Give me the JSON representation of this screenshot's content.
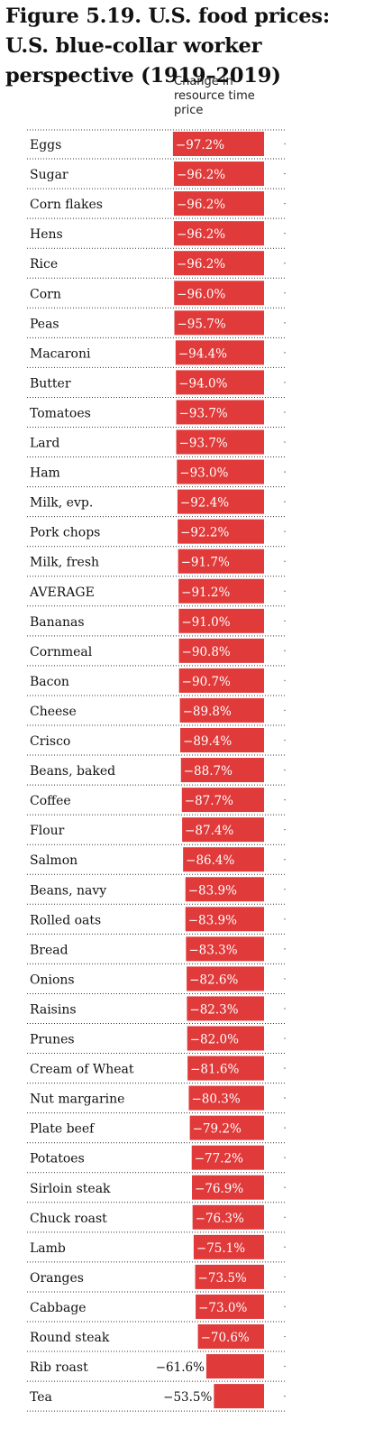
{
  "chart_data": {
    "type": "bar",
    "title": "Figure 5.19. U.S. food prices: U.S. blue-collar worker perspective (1919–2019)",
    "column_header": "Change in resource time price",
    "unit": "%",
    "categories": [
      "Eggs",
      "Sugar",
      "Corn flakes",
      "Hens",
      "Rice",
      "Corn",
      "Peas",
      "Macaroni",
      "Butter",
      "Tomatoes",
      "Lard",
      "Ham",
      "Milk, evp.",
      "Pork chops",
      "Milk, fresh",
      "AVERAGE",
      "Bananas",
      "Cornmeal",
      "Bacon",
      "Cheese",
      "Crisco",
      "Beans, baked",
      "Coffee",
      "Flour",
      "Salmon",
      "Beans, navy",
      "Rolled oats",
      "Bread",
      "Onions",
      "Raisins",
      "Prunes",
      "Cream of Wheat",
      "Nut margarine",
      "Plate beef",
      "Potatoes",
      "Sirloin steak",
      "Chuck roast",
      "Lamb",
      "Oranges",
      "Cabbage",
      "Round steak",
      "Rib roast",
      "Tea"
    ],
    "values": [
      -97.2,
      -96.2,
      -96.2,
      -96.2,
      -96.2,
      -96.0,
      -95.7,
      -94.4,
      -94.0,
      -93.7,
      -93.7,
      -93.0,
      -92.4,
      -92.2,
      -91.7,
      -91.2,
      -91.0,
      -90.8,
      -90.7,
      -89.8,
      -89.4,
      -88.7,
      -87.7,
      -87.4,
      -86.4,
      -83.9,
      -83.9,
      -83.3,
      -82.6,
      -82.3,
      -82.0,
      -81.6,
      -80.3,
      -79.2,
      -77.2,
      -76.9,
      -76.3,
      -75.1,
      -73.5,
      -73.0,
      -70.6,
      -61.6,
      -53.5
    ],
    "value_labels": [
      "−97.2%",
      "−96.2%",
      "−96.2%",
      "−96.2%",
      "−96.2%",
      "−96.0%",
      "−95.7%",
      "−94.4%",
      "−94.0%",
      "−93.7%",
      "−93.7%",
      "−93.0%",
      "−92.4%",
      "−92.2%",
      "−91.7%",
      "−91.2%",
      "−91.0%",
      "−90.8%",
      "−90.7%",
      "−89.8%",
      "−89.4%",
      "−88.7%",
      "−87.7%",
      "−87.4%",
      "−86.4%",
      "−83.9%",
      "−83.9%",
      "−83.3%",
      "−82.6%",
      "−82.3%",
      "−82.0%",
      "−81.6%",
      "−80.3%",
      "−79.2%",
      "−77.2%",
      "−76.9%",
      "−76.3%",
      "−75.1%",
      "−73.5%",
      "−73.0%",
      "−70.6%",
      "−61.6%",
      "−53.5%"
    ],
    "colors": {
      "bar": "#e03a3a",
      "label_on_bar": "#ffffff",
      "label_outside": "#111111",
      "rule": "#333333"
    },
    "grid": false,
    "legend": "none"
  }
}
